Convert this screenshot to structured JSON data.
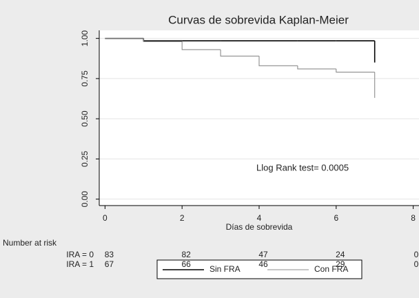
{
  "chart_data": {
    "type": "step",
    "title": "Curvas de sobrevida Kaplan-Meier",
    "x_label": "Días de sobrevida",
    "x": [
      0,
      1,
      2,
      3,
      4,
      5,
      6,
      7
    ],
    "series": [
      {
        "name": "Sin FRA",
        "color": "#000000",
        "values": [
          1,
          0.985,
          0.985,
          0.985,
          0.985,
          0.985,
          0.985,
          0.85
        ]
      },
      {
        "name": "Con FRA",
        "color": "#8c8c8c",
        "values": [
          1,
          0.98,
          0.93,
          0.89,
          0.83,
          0.81,
          0.79,
          0.63
        ]
      }
    ],
    "xlim": [
      -0.15,
      8.15
    ],
    "xticks": [
      0,
      2,
      4,
      6,
      8
    ],
    "ylim": [
      -0.04,
      1.05
    ],
    "yticks": [
      {
        "value": 0,
        "label": "0.00"
      },
      {
        "value": 0.25,
        "label": "0.25"
      },
      {
        "value": 0.5,
        "label": "0.50"
      },
      {
        "value": 0.75,
        "label": "0.75"
      },
      {
        "value": 1,
        "label": "1.00"
      }
    ],
    "grid": true,
    "annotation": "Llog Rank test= 0.0005",
    "risk_table": {
      "title": "Number at risk",
      "rows": [
        {
          "label": "IRA = 0",
          "values": [
            83,
            82,
            47,
            24,
            0
          ]
        },
        {
          "label": "IRA = 1",
          "values": [
            67,
            66,
            46,
            29,
            0
          ]
        }
      ]
    },
    "legend": "bottom"
  }
}
